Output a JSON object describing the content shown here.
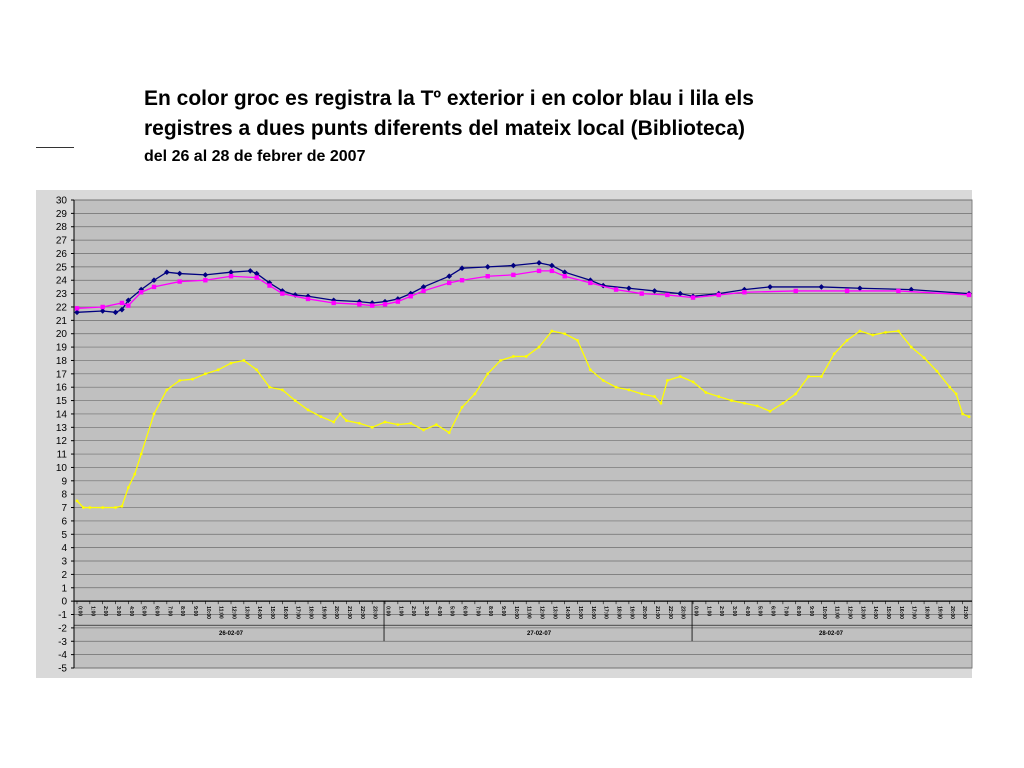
{
  "header": {
    "title_line1": "En color groc es registra la Tº exterior i en color blau i lila els",
    "title_line2": "registres a dues punts diferents del mateix local (Biblioteca)",
    "subtitle": "del 26 al 28 de febrer de 2007"
  },
  "chart_data": {
    "type": "line",
    "ylim": [
      -5,
      30
    ],
    "yticks": [
      30,
      29,
      28,
      27,
      26,
      25,
      24,
      23,
      22,
      21,
      20,
      19,
      18,
      17,
      16,
      15,
      14,
      13,
      12,
      11,
      10,
      9,
      8,
      7,
      6,
      5,
      4,
      3,
      2,
      1,
      0,
      -1,
      -2,
      -3,
      -4,
      -5
    ],
    "grid": true,
    "plot_background": "#c0c0c0",
    "hours": [
      "0:00",
      "1:00",
      "2:00",
      "3:00",
      "4:00",
      "5:00",
      "6:00",
      "7:00",
      "8:00",
      "9:00",
      "10:00",
      "11:00",
      "12:00",
      "13:00",
      "14:00",
      "15:00",
      "16:00",
      "17:00",
      "18:00",
      "19:00",
      "20:00",
      "21:00",
      "22:00",
      "23:00"
    ],
    "days": [
      "26-02-07",
      "27-02-07",
      "28-02-07"
    ],
    "x_max_hours": 69.5,
    "series": [
      {
        "color": "#000080",
        "marker": "diamond",
        "points": [
          [
            0,
            21.6
          ],
          [
            2,
            21.7
          ],
          [
            3,
            21.6
          ],
          [
            3.5,
            21.8
          ],
          [
            4,
            22.5
          ],
          [
            5,
            23.3
          ],
          [
            6,
            24.0
          ],
          [
            7,
            24.6
          ],
          [
            8,
            24.5
          ],
          [
            10,
            24.4
          ],
          [
            12,
            24.6
          ],
          [
            13.5,
            24.7
          ],
          [
            14,
            24.5
          ],
          [
            15,
            23.8
          ],
          [
            16,
            23.2
          ],
          [
            17,
            22.9
          ],
          [
            18,
            22.8
          ],
          [
            20,
            22.5
          ],
          [
            22,
            22.4
          ],
          [
            23,
            22.3
          ],
          [
            24,
            22.4
          ],
          [
            25,
            22.6
          ],
          [
            26,
            23.0
          ],
          [
            27,
            23.5
          ],
          [
            29,
            24.3
          ],
          [
            30,
            24.9
          ],
          [
            32,
            25.0
          ],
          [
            34,
            25.1
          ],
          [
            36,
            25.3
          ],
          [
            37,
            25.1
          ],
          [
            38,
            24.6
          ],
          [
            40,
            24.0
          ],
          [
            41,
            23.6
          ],
          [
            43,
            23.4
          ],
          [
            45,
            23.2
          ],
          [
            47,
            23.0
          ],
          [
            48,
            22.8
          ],
          [
            50,
            23.0
          ],
          [
            52,
            23.3
          ],
          [
            54,
            23.5
          ],
          [
            58,
            23.5
          ],
          [
            61,
            23.4
          ],
          [
            65,
            23.3
          ],
          [
            69.5,
            23.0
          ]
        ]
      },
      {
        "color": "#ff00ff",
        "marker": "square",
        "points": [
          [
            0,
            21.9
          ],
          [
            2,
            22.0
          ],
          [
            3.5,
            22.3
          ],
          [
            4,
            22.1
          ],
          [
            5,
            23.1
          ],
          [
            6,
            23.5
          ],
          [
            8,
            23.9
          ],
          [
            10,
            24.0
          ],
          [
            12,
            24.3
          ],
          [
            14,
            24.2
          ],
          [
            15,
            23.6
          ],
          [
            16,
            23.0
          ],
          [
            18,
            22.6
          ],
          [
            20,
            22.3
          ],
          [
            22,
            22.2
          ],
          [
            23,
            22.1
          ],
          [
            24,
            22.2
          ],
          [
            25,
            22.4
          ],
          [
            26,
            22.8
          ],
          [
            27,
            23.2
          ],
          [
            29,
            23.8
          ],
          [
            30,
            24.0
          ],
          [
            32,
            24.3
          ],
          [
            34,
            24.4
          ],
          [
            36,
            24.7
          ],
          [
            37,
            24.7
          ],
          [
            38,
            24.3
          ],
          [
            40,
            23.8
          ],
          [
            42,
            23.3
          ],
          [
            44,
            23.0
          ],
          [
            46,
            22.9
          ],
          [
            48,
            22.7
          ],
          [
            50,
            22.9
          ],
          [
            52,
            23.1
          ],
          [
            56,
            23.2
          ],
          [
            60,
            23.2
          ],
          [
            64,
            23.2
          ],
          [
            69.5,
            22.9
          ]
        ]
      },
      {
        "color": "#ffff00",
        "marker": "dot",
        "points": [
          [
            0,
            7.5
          ],
          [
            0.5,
            7.0
          ],
          [
            1,
            7.0
          ],
          [
            2,
            7.0
          ],
          [
            3,
            7.0
          ],
          [
            3.5,
            7.1
          ],
          [
            4,
            8.5
          ],
          [
            4.5,
            9.5
          ],
          [
            5,
            11.0
          ],
          [
            6,
            14.0
          ],
          [
            7,
            15.8
          ],
          [
            8,
            16.5
          ],
          [
            9,
            16.6
          ],
          [
            10,
            17.0
          ],
          [
            11,
            17.3
          ],
          [
            12,
            17.8
          ],
          [
            13,
            18.0
          ],
          [
            14,
            17.3
          ],
          [
            15,
            16.0
          ],
          [
            16,
            15.8
          ],
          [
            17,
            15.0
          ],
          [
            18,
            14.3
          ],
          [
            19,
            13.8
          ],
          [
            20,
            13.4
          ],
          [
            20.5,
            14.0
          ],
          [
            21,
            13.5
          ],
          [
            22,
            13.3
          ],
          [
            23,
            13.0
          ],
          [
            24,
            13.4
          ],
          [
            25,
            13.2
          ],
          [
            26,
            13.3
          ],
          [
            27,
            12.8
          ],
          [
            28,
            13.2
          ],
          [
            29,
            12.6
          ],
          [
            30,
            14.5
          ],
          [
            31,
            15.5
          ],
          [
            32,
            17.0
          ],
          [
            33,
            18.0
          ],
          [
            34,
            18.3
          ],
          [
            35,
            18.3
          ],
          [
            36,
            19.0
          ],
          [
            37,
            20.2
          ],
          [
            38,
            20.0
          ],
          [
            39,
            19.5
          ],
          [
            40,
            17.3
          ],
          [
            41,
            16.5
          ],
          [
            42,
            16.0
          ],
          [
            43,
            15.8
          ],
          [
            44,
            15.5
          ],
          [
            45,
            15.3
          ],
          [
            45.5,
            14.8
          ],
          [
            46,
            16.5
          ],
          [
            47,
            16.8
          ],
          [
            48,
            16.4
          ],
          [
            49,
            15.6
          ],
          [
            50,
            15.3
          ],
          [
            51,
            15.0
          ],
          [
            52,
            14.8
          ],
          [
            53,
            14.6
          ],
          [
            54,
            14.2
          ],
          [
            55,
            14.8
          ],
          [
            56,
            15.5
          ],
          [
            57,
            16.8
          ],
          [
            58,
            16.8
          ],
          [
            59,
            18.5
          ],
          [
            60,
            19.5
          ],
          [
            61,
            20.2
          ],
          [
            62,
            19.9
          ],
          [
            63,
            20.1
          ],
          [
            64,
            20.2
          ],
          [
            65,
            19.0
          ],
          [
            66,
            18.2
          ],
          [
            67,
            17.2
          ],
          [
            68,
            16.0
          ],
          [
            68.5,
            15.5
          ],
          [
            69,
            14.0
          ],
          [
            69.5,
            13.8
          ]
        ]
      }
    ]
  }
}
